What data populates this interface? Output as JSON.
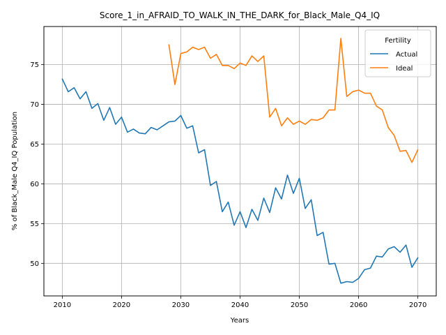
{
  "chart_data": {
    "type": "line",
    "title": "Score_1_in_AFRAID_TO_WALK_IN_THE_DARK_for_Black_Male_Q4_IQ",
    "xlabel": "Years",
    "ylabel": "% of Black_Male Q4_IQ Population",
    "xlim": [
      2006.9,
      2073.1
    ],
    "ylim": [
      45.9,
      79.8
    ],
    "xticks": [
      2010,
      2020,
      2030,
      2040,
      2050,
      2060,
      2070
    ],
    "yticks": [
      50,
      55,
      60,
      65,
      70,
      75
    ],
    "grid": true,
    "legend": {
      "title": "Fertility",
      "placement": "top-right"
    },
    "series": [
      {
        "name": "Actual",
        "color": "#1f77b4",
        "x": [
          2010,
          2011,
          2012,
          2013,
          2014,
          2015,
          2016,
          2017,
          2018,
          2019,
          2020,
          2021,
          2022,
          2023,
          2024,
          2025,
          2026,
          2027,
          2028,
          2029,
          2030,
          2031,
          2032,
          2033,
          2034,
          2035,
          2036,
          2037,
          2038,
          2039,
          2040,
          2041,
          2042,
          2043,
          2044,
          2045,
          2046,
          2047,
          2048,
          2049,
          2050,
          2051,
          2052,
          2053,
          2054,
          2055,
          2056,
          2057,
          2058,
          2059,
          2060,
          2061,
          2062,
          2063,
          2064,
          2065,
          2066,
          2067,
          2068,
          2069,
          2070
        ],
        "y": [
          73.2,
          71.6,
          72.1,
          70.7,
          71.6,
          69.5,
          70.1,
          68.0,
          69.6,
          67.5,
          68.4,
          66.5,
          66.9,
          66.4,
          66.3,
          67.1,
          66.8,
          67.3,
          67.8,
          67.9,
          68.6,
          67.0,
          67.3,
          63.9,
          64.3,
          59.8,
          60.3,
          56.5,
          57.7,
          54.8,
          56.5,
          54.5,
          56.8,
          55.4,
          58.2,
          56.4,
          59.5,
          58.1,
          61.1,
          58.8,
          60.7,
          56.9,
          58.0,
          53.5,
          53.9,
          49.9,
          50.0,
          47.5,
          47.7,
          47.6,
          48.1,
          49.2,
          49.4,
          50.9,
          50.8,
          51.8,
          52.1,
          51.4,
          52.3,
          49.5,
          50.7
        ]
      },
      {
        "name": "Ideal",
        "color": "#ff7f0e",
        "x": [
          2028,
          2029,
          2030,
          2031,
          2032,
          2033,
          2034,
          2035,
          2036,
          2037,
          2038,
          2039,
          2040,
          2041,
          2042,
          2043,
          2044,
          2045,
          2046,
          2047,
          2048,
          2049,
          2050,
          2051,
          2052,
          2053,
          2054,
          2055,
          2056,
          2057,
          2058,
          2059,
          2060,
          2061,
          2062,
          2063,
          2064,
          2065,
          2066,
          2067,
          2068,
          2069,
          2070
        ],
        "y": [
          77.5,
          72.5,
          76.4,
          76.6,
          77.2,
          76.9,
          77.2,
          75.8,
          76.3,
          74.9,
          74.9,
          74.5,
          75.2,
          74.9,
          76.1,
          75.4,
          76.1,
          68.4,
          69.5,
          67.3,
          68.3,
          67.5,
          67.9,
          67.5,
          68.1,
          68.0,
          68.3,
          69.3,
          69.3,
          78.3,
          71.0,
          71.6,
          71.8,
          71.4,
          71.4,
          69.8,
          69.3,
          67.1,
          66.1,
          64.1,
          64.2,
          62.7,
          64.3
        ]
      }
    ]
  }
}
